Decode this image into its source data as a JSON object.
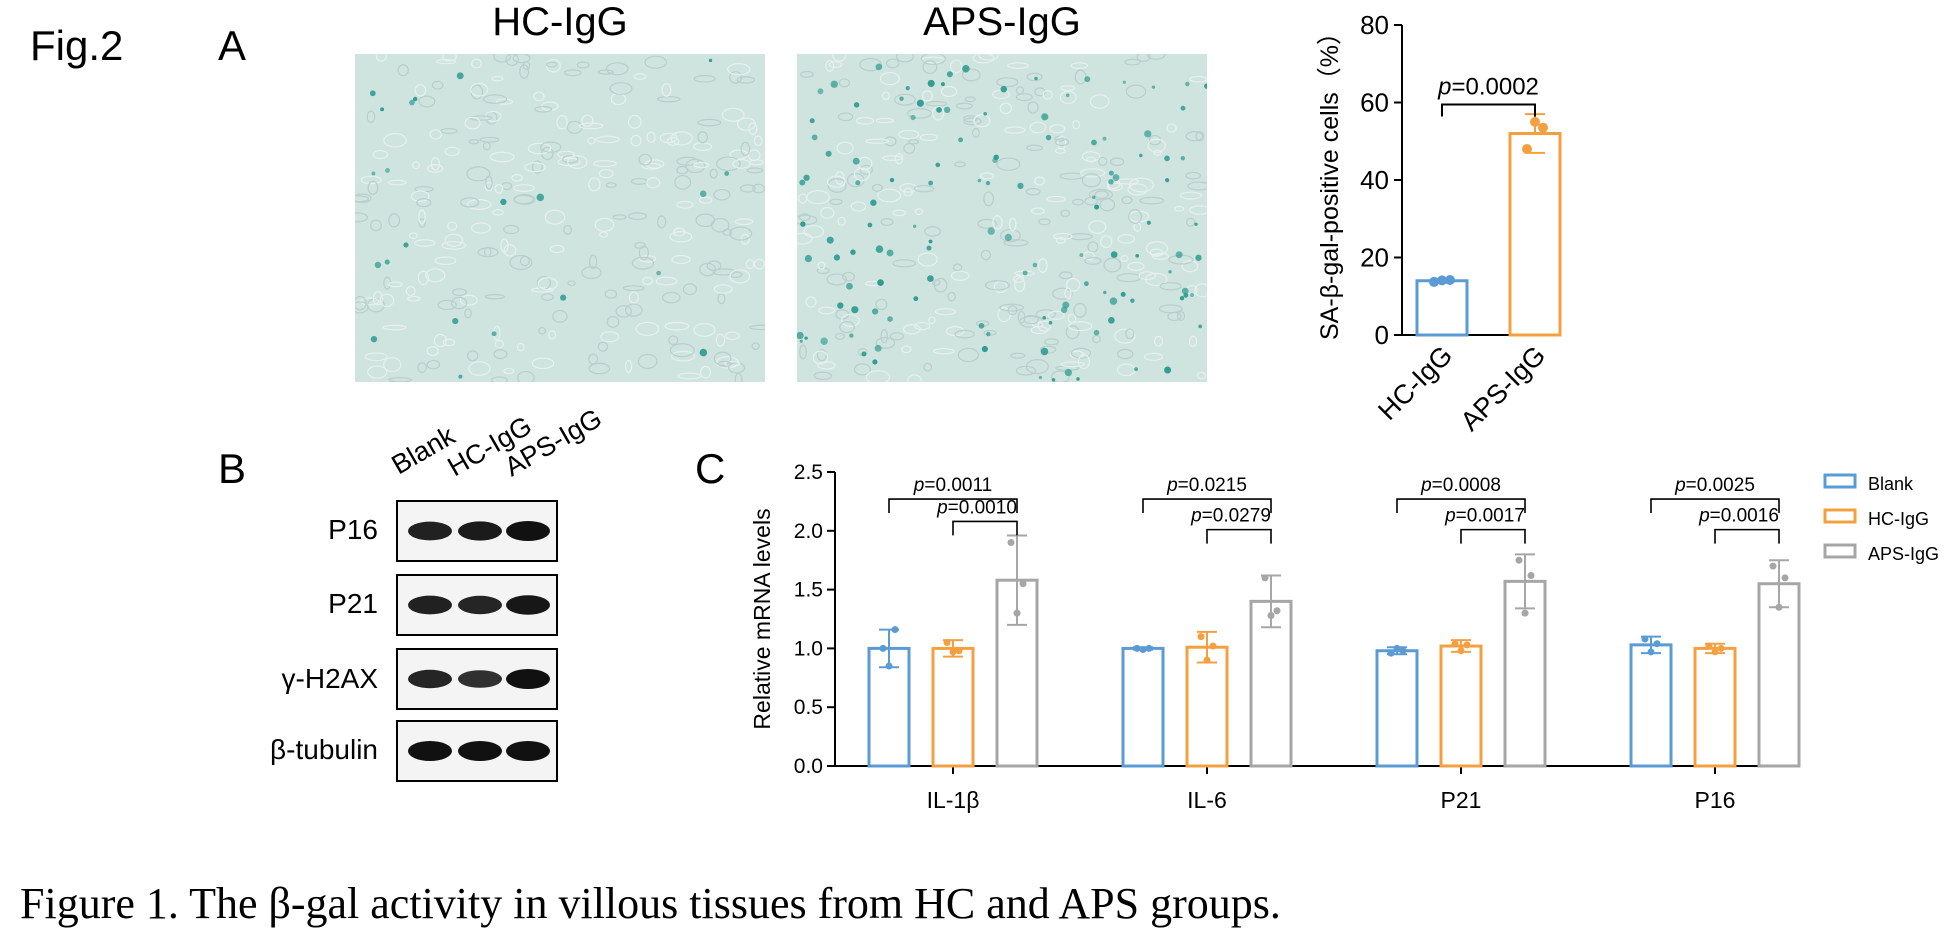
{
  "figure": {
    "label": "Fig.2",
    "caption": "Figure 1. The β-gal activity in villous tissues from HC and APS groups."
  },
  "panel_a": {
    "letter": "A",
    "images": [
      {
        "title": "HC-IgG",
        "stain_density": "sparse"
      },
      {
        "title": "APS-IgG",
        "stain_density": "dense"
      }
    ]
  },
  "panel_b": {
    "letter": "B",
    "lanes": [
      "Blank",
      "HC-IgG",
      "APS-IgG"
    ],
    "rows": [
      {
        "label": "P16"
      },
      {
        "label": "P21"
      },
      {
        "label": "γ-H2AX"
      },
      {
        "label": "β-tubulin"
      }
    ]
  },
  "panel_c": {
    "letter": "C"
  },
  "colors": {
    "blank": "#5b9bd5",
    "hc": "#f5a040",
    "aps": "#a6a6a6"
  },
  "chart_data": [
    {
      "type": "bar",
      "ylabel": "SA-β-gal-positive cells（%）",
      "ylim": [
        0,
        80
      ],
      "yticks": [
        "0",
        "20",
        "40",
        "60",
        "80"
      ],
      "categories": [
        "HC-IgG",
        "APS-IgG"
      ],
      "values": [
        14,
        52
      ],
      "errors": [
        0.5,
        5
      ],
      "points": [
        [
          13.7,
          14.1,
          14.2
        ],
        [
          48,
          55,
          53.5
        ]
      ],
      "colors": [
        "#5b9bd5",
        "#f5a040"
      ],
      "annotations": [
        {
          "text": "p=0.0002",
          "p_prefix": "p",
          "p_value": "=0.0002",
          "from": 0,
          "to": 1
        }
      ]
    },
    {
      "type": "bar",
      "ylabel": "Relative mRNA levels",
      "ylim": [
        0,
        2.5
      ],
      "yticks": [
        "0.0",
        "0.5",
        "1.0",
        "1.5",
        "2.0",
        "2.5"
      ],
      "categories": [
        "IL-1β",
        "IL-6",
        "P21",
        "P16"
      ],
      "legend_position": "right",
      "series": [
        {
          "name": "Blank",
          "color": "#5b9bd5",
          "values": [
            1.0,
            1.0,
            0.98,
            1.03
          ],
          "errors": [
            0.16,
            0.01,
            0.03,
            0.07
          ],
          "points": [
            [
              1.0,
              0.85,
              1.16
            ],
            [
              1.0,
              0.99,
              1.0
            ],
            [
              0.96,
              1.0,
              0.98
            ],
            [
              1.08,
              0.97,
              1.04
            ]
          ]
        },
        {
          "name": "HC-IgG",
          "color": "#f5a040",
          "values": [
            1.0,
            1.01,
            1.02,
            1.0
          ],
          "errors": [
            0.07,
            0.13,
            0.05,
            0.04
          ],
          "points": [
            [
              1.05,
              0.97,
              0.98
            ],
            [
              1.1,
              0.9,
              1.02
            ],
            [
              1.04,
              0.98,
              1.03
            ],
            [
              1.02,
              0.97,
              1.0
            ]
          ]
        },
        {
          "name": "APS-IgG",
          "color": "#a6a6a6",
          "values": [
            1.58,
            1.4,
            1.57,
            1.55
          ],
          "errors": [
            0.38,
            0.22,
            0.23,
            0.2
          ],
          "points": [
            [
              1.9,
              1.3,
              1.55
            ],
            [
              1.6,
              1.28,
              1.32
            ],
            [
              1.75,
              1.3,
              1.62
            ],
            [
              1.7,
              1.35,
              1.6
            ]
          ]
        }
      ],
      "annotations": [
        {
          "group": 0,
          "from": 0,
          "to": 2,
          "text": "p=0.0011",
          "p_prefix": "p",
          "p_value": "=0.0011",
          "level": 2
        },
        {
          "group": 0,
          "from": 1,
          "to": 2,
          "text": "p=0.0010",
          "p_prefix": "p",
          "p_value": "=0.0010",
          "level": 1
        },
        {
          "group": 1,
          "from": 0,
          "to": 2,
          "text": "p=0.0215",
          "p_prefix": "p",
          "p_value": "=0.0215",
          "level": 2
        },
        {
          "group": 1,
          "from": 1,
          "to": 2,
          "text": "p=0.0279",
          "p_prefix": "p",
          "p_value": "=0.0279",
          "level": 1
        },
        {
          "group": 2,
          "from": 0,
          "to": 2,
          "text": "p=0.0008",
          "p_prefix": "p",
          "p_value": "=0.0008",
          "level": 2
        },
        {
          "group": 2,
          "from": 1,
          "to": 2,
          "text": "p=0.0017",
          "p_prefix": "p",
          "p_value": "=0.0017",
          "level": 1
        },
        {
          "group": 3,
          "from": 0,
          "to": 2,
          "text": "p=0.0025",
          "p_prefix": "p",
          "p_value": "=0.0025",
          "level": 2
        },
        {
          "group": 3,
          "from": 1,
          "to": 2,
          "text": "p=0.0016",
          "p_prefix": "p",
          "p_value": "=0.0016",
          "level": 1
        }
      ]
    }
  ]
}
